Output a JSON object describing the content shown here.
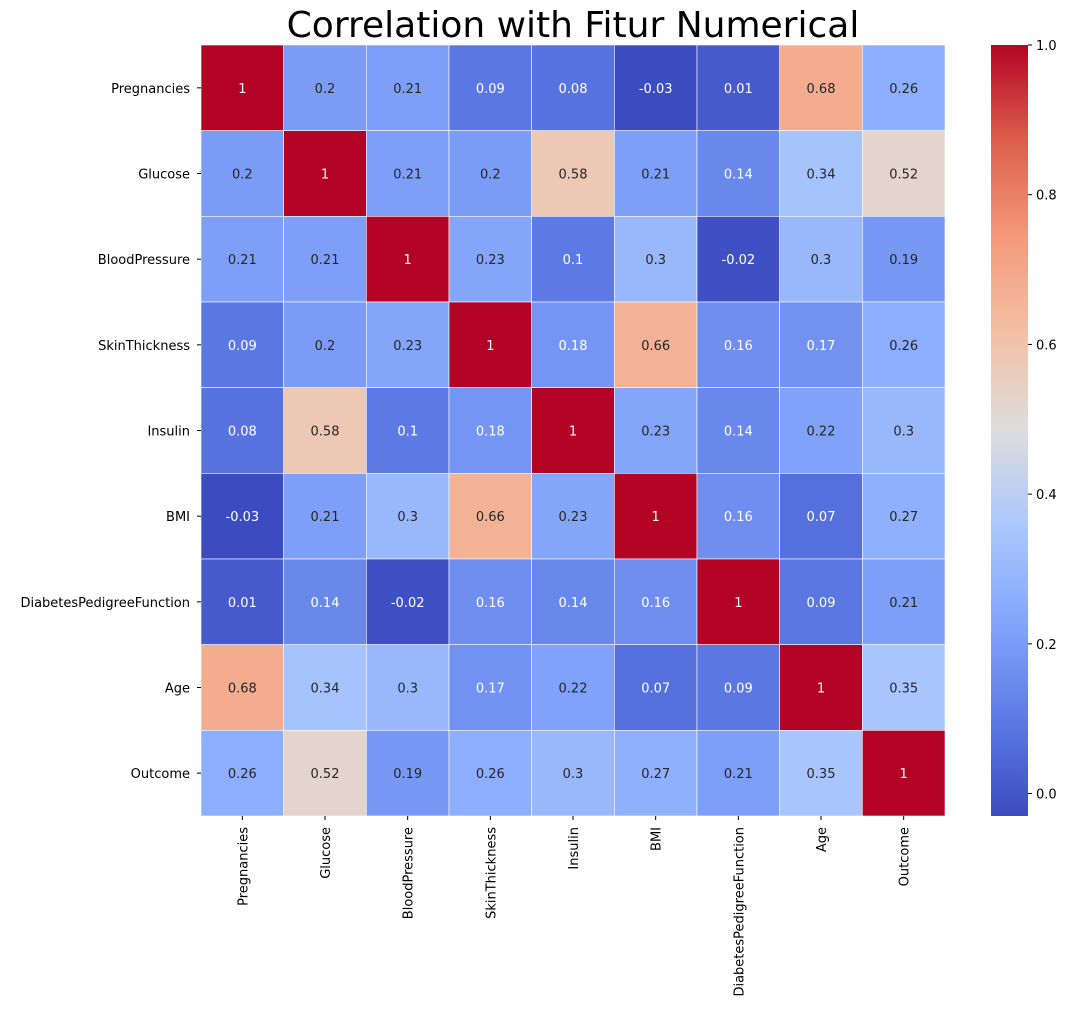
{
  "chart_data": {
    "type": "heatmap",
    "title": "Correlation with Fitur Numerical",
    "rows": [
      "Pregnancies",
      "Glucose",
      "BloodPressure",
      "SkinThickness",
      "Insulin",
      "BMI",
      "DiabetesPedigreeFunction",
      "Age",
      "Outcome"
    ],
    "columns": [
      "Pregnancies",
      "Glucose",
      "BloodPressure",
      "SkinThickness",
      "Insulin",
      "BMI",
      "DiabetesPedigreeFunction",
      "Age",
      "Outcome"
    ],
    "values": [
      [
        1,
        0.2,
        0.21,
        0.09,
        0.08,
        -0.03,
        0.01,
        0.68,
        0.26
      ],
      [
        0.2,
        1,
        0.21,
        0.2,
        0.58,
        0.21,
        0.14,
        0.34,
        0.52
      ],
      [
        0.21,
        0.21,
        1,
        0.23,
        0.1,
        0.3,
        -0.02,
        0.3,
        0.19
      ],
      [
        0.09,
        0.2,
        0.23,
        1,
        0.18,
        0.66,
        0.16,
        0.17,
        0.26
      ],
      [
        0.08,
        0.58,
        0.1,
        0.18,
        1,
        0.23,
        0.14,
        0.22,
        0.3
      ],
      [
        -0.03,
        0.21,
        0.3,
        0.66,
        0.23,
        1,
        0.16,
        0.07,
        0.27
      ],
      [
        0.01,
        0.14,
        -0.02,
        0.16,
        0.14,
        0.16,
        1,
        0.09,
        0.21
      ],
      [
        0.68,
        0.34,
        0.3,
        0.17,
        0.22,
        0.07,
        0.09,
        1,
        0.35
      ],
      [
        0.26,
        0.52,
        0.19,
        0.26,
        0.3,
        0.27,
        0.21,
        0.35,
        1
      ]
    ],
    "colormap": "coolwarm",
    "colorbar": {
      "range": [
        -0.03,
        1.0
      ],
      "ticks": [
        0.0,
        0.2,
        0.4,
        0.6,
        0.8,
        1.0
      ],
      "tick_labels": [
        "0.0",
        "0.2",
        "0.4",
        "0.6",
        "0.8",
        "1.0"
      ]
    },
    "annotated": true,
    "cell_border_color": "#ffffff"
  }
}
